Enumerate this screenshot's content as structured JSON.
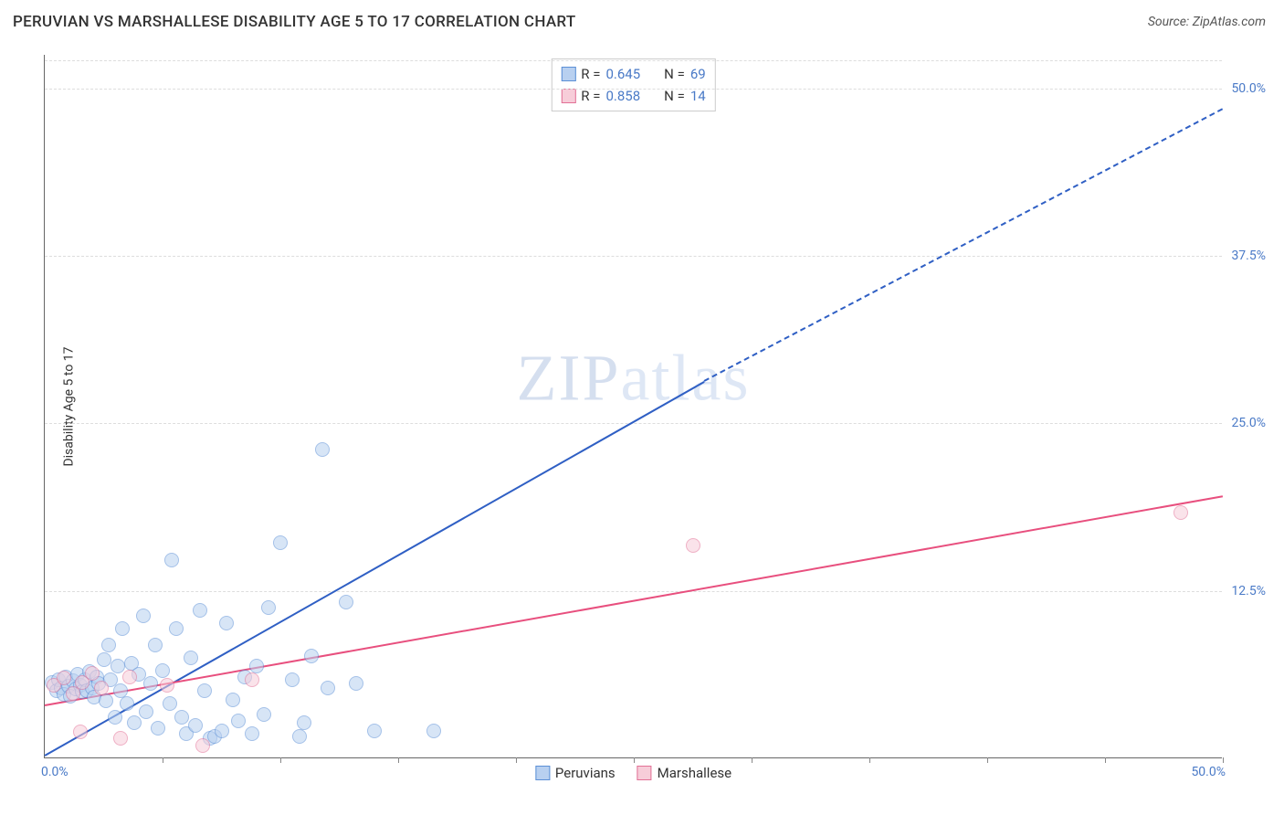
{
  "header": {
    "title": "PERUVIAN VS MARSHALLESE DISABILITY AGE 5 TO 17 CORRELATION CHART",
    "source_label": "Source:",
    "source_value": "ZipAtlas.com"
  },
  "watermark": {
    "part1": "ZIP",
    "part2": "atlas"
  },
  "chart": {
    "type": "scatter",
    "y_axis_title": "Disability Age 5 to 17",
    "background_color": "#ffffff",
    "grid_color": "#dddddd",
    "axis_color": "#666666",
    "xlim": [
      0,
      50
    ],
    "ylim": [
      0,
      52.5
    ],
    "x_tick_step": 5,
    "y_ticks": [
      12.5,
      25.0,
      37.5,
      50.0
    ],
    "y_tick_labels": [
      "12.5%",
      "25.0%",
      "37.5%",
      "50.0%"
    ],
    "x_min_label": "0.0%",
    "x_max_label": "50.0%",
    "tick_label_color": "#4a7ac7",
    "tick_label_fontsize": 14,
    "title_fontsize": 17,
    "point_radius": 8,
    "point_opacity": 0.55,
    "series": [
      {
        "id": "peruvians",
        "label": "Peruvians",
        "fill": "#b8d0f0",
        "stroke": "#5b8fd6",
        "line_color": "#2f5fc4",
        "stats": {
          "R": "0.645",
          "N": "69"
        },
        "trend": {
          "x1": 0,
          "y1": 0.3,
          "x2": 28,
          "y2": 28.2,
          "dash_x2": 50,
          "dash_y2": 48.5
        },
        "points": [
          [
            0.3,
            5.6
          ],
          [
            0.5,
            5.0
          ],
          [
            0.6,
            5.8
          ],
          [
            0.7,
            5.2
          ],
          [
            0.8,
            4.7
          ],
          [
            0.9,
            6.0
          ],
          [
            1.0,
            5.3
          ],
          [
            1.1,
            4.6
          ],
          [
            1.2,
            5.7
          ],
          [
            1.3,
            5.1
          ],
          [
            1.4,
            6.2
          ],
          [
            1.5,
            5.4
          ],
          [
            1.6,
            4.9
          ],
          [
            1.7,
            5.8
          ],
          [
            1.8,
            5.0
          ],
          [
            1.9,
            6.4
          ],
          [
            2.0,
            5.2
          ],
          [
            2.1,
            4.5
          ],
          [
            2.2,
            6.0
          ],
          [
            2.3,
            5.5
          ],
          [
            2.5,
            7.3
          ],
          [
            2.6,
            4.2
          ],
          [
            2.7,
            8.4
          ],
          [
            2.8,
            5.8
          ],
          [
            3.0,
            3.0
          ],
          [
            3.1,
            6.8
          ],
          [
            3.2,
            5.0
          ],
          [
            3.3,
            9.6
          ],
          [
            3.5,
            4.0
          ],
          [
            3.7,
            7.0
          ],
          [
            3.8,
            2.6
          ],
          [
            4.0,
            6.2
          ],
          [
            4.2,
            10.6
          ],
          [
            4.3,
            3.4
          ],
          [
            4.5,
            5.5
          ],
          [
            4.7,
            8.4
          ],
          [
            4.8,
            2.2
          ],
          [
            5.0,
            6.5
          ],
          [
            5.3,
            4.0
          ],
          [
            5.4,
            14.7
          ],
          [
            5.6,
            9.6
          ],
          [
            5.8,
            3.0
          ],
          [
            6.0,
            1.8
          ],
          [
            6.2,
            7.4
          ],
          [
            6.4,
            2.4
          ],
          [
            6.6,
            11.0
          ],
          [
            6.8,
            5.0
          ],
          [
            7.0,
            1.4
          ],
          [
            7.2,
            1.6
          ],
          [
            7.5,
            2.0
          ],
          [
            7.7,
            10.0
          ],
          [
            8.0,
            4.3
          ],
          [
            8.2,
            2.7
          ],
          [
            8.5,
            6.0
          ],
          [
            8.8,
            1.8
          ],
          [
            9.0,
            6.8
          ],
          [
            9.3,
            3.2
          ],
          [
            9.5,
            11.2
          ],
          [
            10.0,
            16.0
          ],
          [
            10.5,
            5.8
          ],
          [
            10.8,
            1.6
          ],
          [
            11.0,
            2.6
          ],
          [
            11.3,
            7.6
          ],
          [
            12.0,
            5.2
          ],
          [
            12.8,
            11.6
          ],
          [
            13.2,
            5.5
          ],
          [
            14.0,
            2.0
          ],
          [
            11.8,
            23.0
          ],
          [
            16.5,
            2.0
          ]
        ]
      },
      {
        "id": "marshallese",
        "label": "Marshallese",
        "fill": "#f7cdd9",
        "stroke": "#e27096",
        "line_color": "#e84f7e",
        "stats": {
          "R": "0.858",
          "N": "14"
        },
        "trend": {
          "x1": 0,
          "y1": 4.0,
          "x2": 50,
          "y2": 19.6
        },
        "points": [
          [
            0.4,
            5.4
          ],
          [
            0.8,
            5.9
          ],
          [
            1.2,
            4.8
          ],
          [
            1.6,
            5.6
          ],
          [
            2.0,
            6.3
          ],
          [
            1.5,
            1.9
          ],
          [
            2.4,
            5.2
          ],
          [
            3.2,
            1.4
          ],
          [
            3.6,
            6.0
          ],
          [
            5.2,
            5.4
          ],
          [
            6.7,
            0.9
          ],
          [
            8.8,
            5.8
          ],
          [
            27.5,
            15.8
          ],
          [
            48.2,
            18.3
          ]
        ]
      }
    ],
    "legend": {
      "position": "top-center",
      "R_label": "R =",
      "N_label": "N ="
    },
    "bottom_legend": [
      {
        "label": "Peruvians",
        "fill": "#b8d0f0",
        "stroke": "#5b8fd6"
      },
      {
        "label": "Marshallese",
        "fill": "#f7cdd9",
        "stroke": "#e27096"
      }
    ]
  }
}
